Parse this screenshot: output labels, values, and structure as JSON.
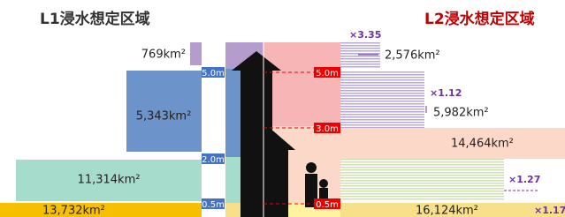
{
  "header": {
    "left_title": "L1浸水想定区域",
    "right_title": "L2浸水想定区域"
  },
  "left": {
    "areas": [
      "769km²",
      "5,343km²",
      "11,314km²",
      "13,732km²"
    ],
    "depths": [
      "5.0m",
      "2.0m",
      "0.5m"
    ]
  },
  "right": {
    "areas": [
      "2,576km²",
      "5,982km²",
      "14,464km²",
      "16,124km²"
    ],
    "ratios": [
      "×3.35",
      "×1.12",
      "×1.27",
      "×1.17"
    ],
    "depths": [
      "5.0m",
      "3.0m",
      "0.5m"
    ]
  }
}
